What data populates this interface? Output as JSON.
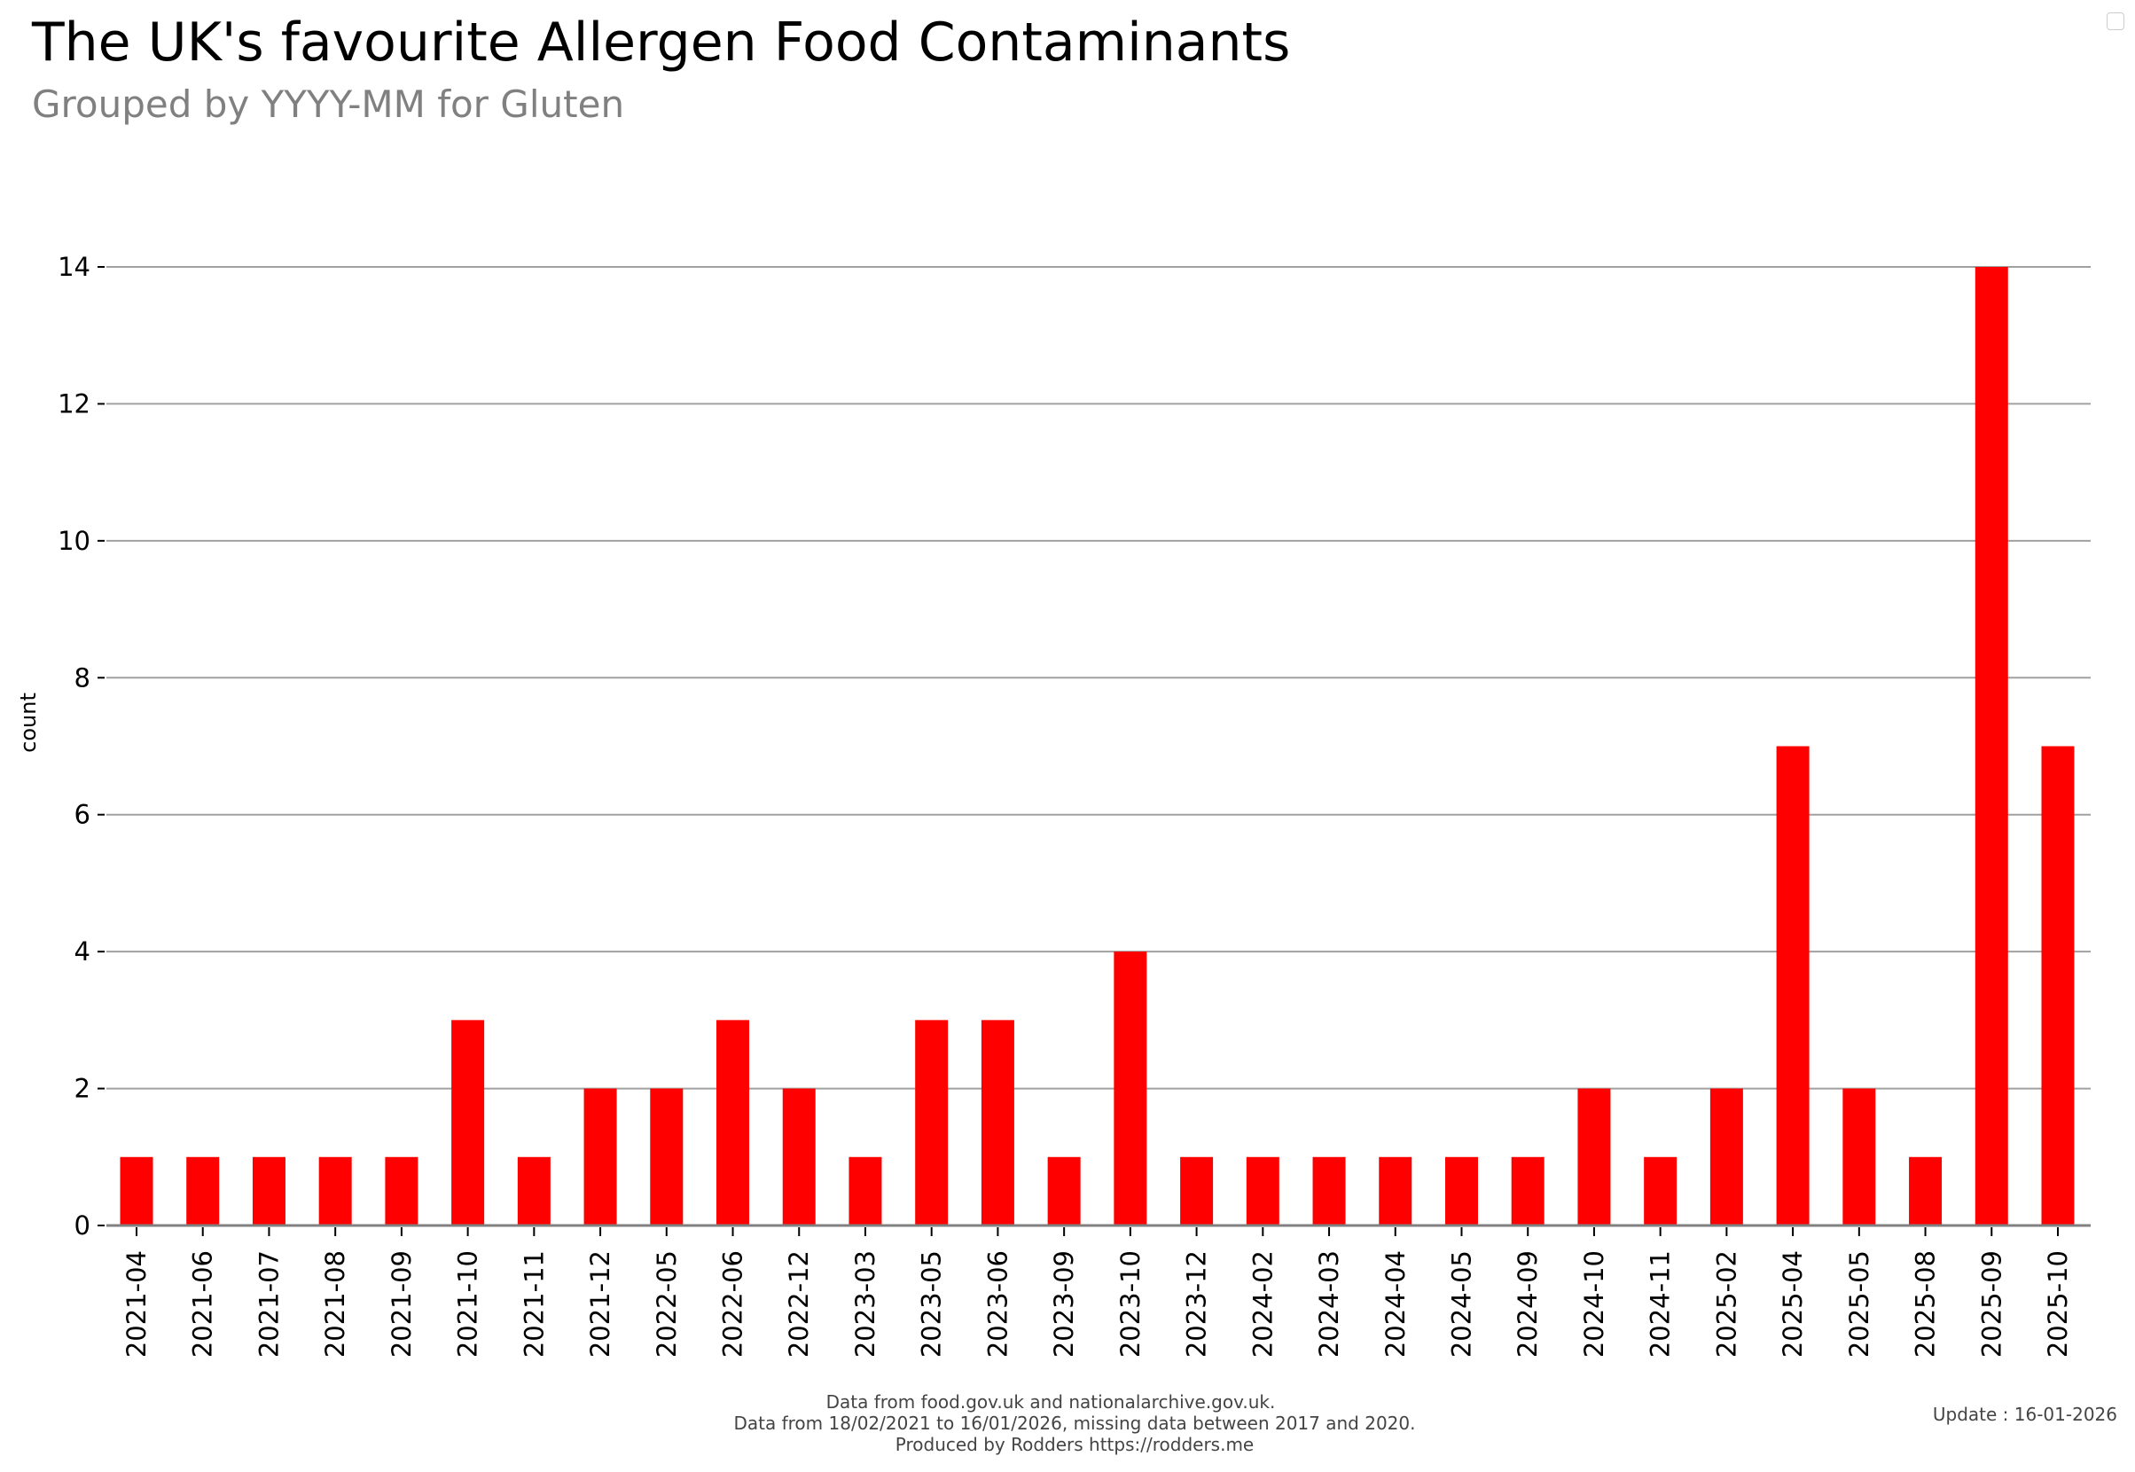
{
  "chart_data": {
    "type": "bar",
    "title": "The UK's favourite Allergen Food Contaminants",
    "subtitle": "Grouped by YYYY-MM for Gluten",
    "xlabel": "",
    "ylabel": "count",
    "ylim": [
      0,
      14
    ],
    "yticks": [
      0,
      2,
      4,
      6,
      8,
      10,
      12,
      14
    ],
    "grid": true,
    "bar_color": "#ff0000",
    "categories": [
      "2021-04",
      "2021-06",
      "2021-07",
      "2021-08",
      "2021-09",
      "2021-10",
      "2021-11",
      "2021-12",
      "2022-05",
      "2022-06",
      "2022-12",
      "2023-03",
      "2023-05",
      "2023-06",
      "2023-09",
      "2023-10",
      "2023-12",
      "2024-02",
      "2024-03",
      "2024-04",
      "2024-05",
      "2024-09",
      "2024-10",
      "2024-11",
      "2025-02",
      "2025-04",
      "2025-05",
      "2025-08",
      "2025-09",
      "2025-10"
    ],
    "values": [
      1,
      1,
      1,
      1,
      1,
      3,
      1,
      2,
      2,
      3,
      2,
      1,
      3,
      3,
      1,
      4,
      1,
      1,
      1,
      1,
      1,
      1,
      2,
      1,
      2,
      7,
      2,
      1,
      14,
      7
    ]
  },
  "footer": {
    "line1": "Data from food.gov.uk and nationalarchive.gov.uk.",
    "line2": "Data from 18/02/2021  to 16/01/2026, missing data between 2017 and 2020.",
    "line3": "Produced by Rodders https://rodders.me",
    "update": "Update : 16-01-2026"
  }
}
